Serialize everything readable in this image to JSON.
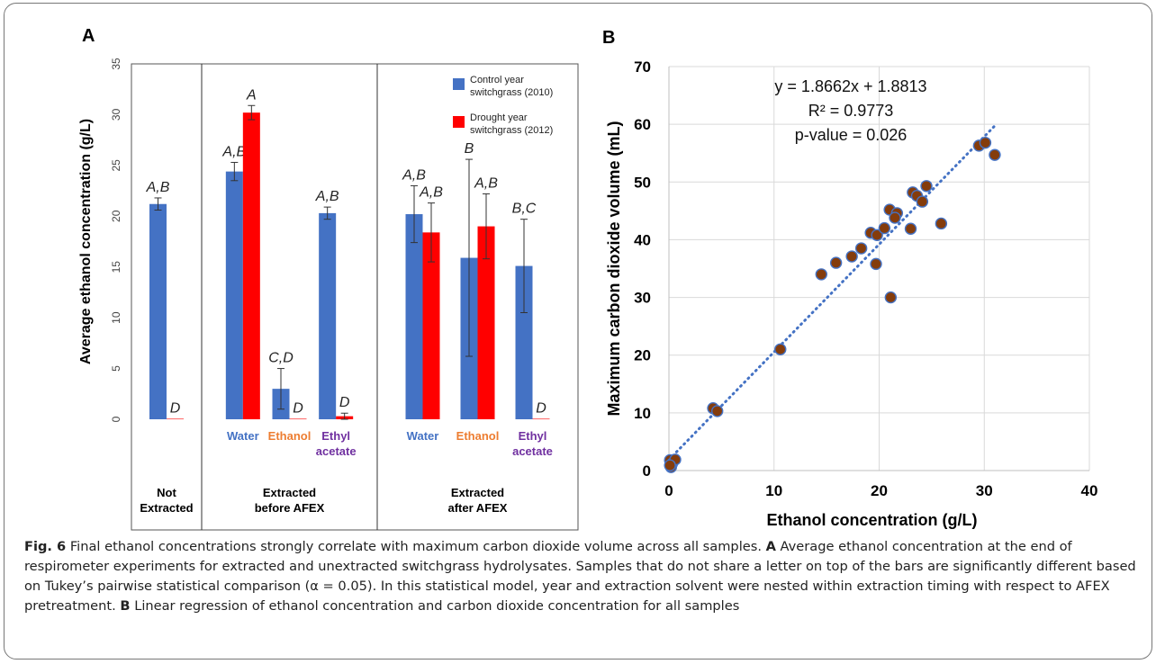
{
  "panel_labels": {
    "a": "A",
    "b": "B"
  },
  "caption": {
    "fig_label": "Fig. 6",
    "title": "Final ethanol concentrations strongly correlate with maximum carbon dioxide volume across all samples.",
    "label_a": "A",
    "text_a": "Average ethanol concentration at the end of respirometer experiments for extracted and unextracted switchgrass hydrolysates. Samples that do not share a letter on top of the bars are significantly different based on Tukey’s pairwise statistical comparison (α = 0.05). In this statistical model, year and extraction solvent were nested within extraction timing with respect to AFEX pretreatment.",
    "label_b": "B",
    "text_b": "Linear regression of ethanol concentration and carbon dioxide concentration for all samples"
  },
  "chart_data": [
    {
      "type": "bar",
      "ylabel": "Average ethanol concentration (g/L)",
      "ylim": [
        0,
        35
      ],
      "yticks": [
        "0",
        "5",
        "10",
        "15",
        "20",
        "25",
        "30",
        "35"
      ],
      "grid": false,
      "legend_position": "top-right",
      "colors": {
        "control": "#4472C4",
        "drought": "#FF0000",
        "water": "#4472C4",
        "ethanol": "#ED7D31",
        "ethyl": "#7030A0"
      },
      "series": [
        {
          "key": "control",
          "name_lines": [
            "Control year",
            "switchgrass (2010)"
          ]
        },
        {
          "key": "drought",
          "name_lines": [
            "Drought year",
            "switchgrass (2012)"
          ]
        }
      ],
      "groups": [
        {
          "label_lines": [
            "Not",
            "Extracted"
          ],
          "categories": [
            {
              "label_lines": [],
              "color_key": "",
              "bars": [
                {
                  "series": "control",
                  "value": 21.2,
                  "err": 0.6,
                  "letter": "A,B"
                },
                {
                  "series": "drought",
                  "value": 0.05,
                  "err": 0,
                  "letter": "D"
                }
              ]
            }
          ]
        },
        {
          "label_lines": [
            "Extracted",
            "before AFEX"
          ],
          "categories": [
            {
              "label_lines": [
                "Water"
              ],
              "color_key": "water",
              "bars": [
                {
                  "series": "control",
                  "value": 24.4,
                  "err": 0.9,
                  "letter": "A,B"
                },
                {
                  "series": "drought",
                  "value": 30.2,
                  "err": 0.7,
                  "letter": "A"
                }
              ]
            },
            {
              "label_lines": [
                "Ethanol"
              ],
              "color_key": "ethanol",
              "bars": [
                {
                  "series": "control",
                  "value": 3.0,
                  "err": 2.0,
                  "letter": "C,D"
                },
                {
                  "series": "drought",
                  "value": 0.05,
                  "err": 0,
                  "letter": "D"
                }
              ]
            },
            {
              "label_lines": [
                "Ethyl",
                "acetate"
              ],
              "color_key": "ethyl",
              "bars": [
                {
                  "series": "control",
                  "value": 20.3,
                  "err": 0.6,
                  "letter": "A,B"
                },
                {
                  "series": "drought",
                  "value": 0.3,
                  "err": 0.3,
                  "letter": "D"
                }
              ]
            }
          ]
        },
        {
          "label_lines": [
            "Extracted",
            "after AFEX"
          ],
          "categories": [
            {
              "label_lines": [
                "Water"
              ],
              "color_key": "water",
              "bars": [
                {
                  "series": "control",
                  "value": 20.2,
                  "err": 2.8,
                  "letter": "A,B"
                },
                {
                  "series": "drought",
                  "value": 18.4,
                  "err": 2.9,
                  "letter": "A,B"
                }
              ]
            },
            {
              "label_lines": [
                "Ethanol"
              ],
              "color_key": "ethanol",
              "bars": [
                {
                  "series": "control",
                  "value": 15.9,
                  "err": 9.7,
                  "letter": "B"
                },
                {
                  "series": "drought",
                  "value": 19.0,
                  "err": 3.2,
                  "letter": "A,B"
                }
              ]
            },
            {
              "label_lines": [
                "Ethyl",
                "acetate"
              ],
              "color_key": "ethyl",
              "bars": [
                {
                  "series": "control",
                  "value": 15.1,
                  "err": 4.6,
                  "letter": "B,C"
                },
                {
                  "series": "drought",
                  "value": 0.05,
                  "err": 0,
                  "letter": "D"
                }
              ]
            }
          ]
        }
      ]
    },
    {
      "type": "scatter",
      "xlabel": "Ethanol concentration (g/L)",
      "ylabel": "Maximum carbon dioxide volume (mL)",
      "xlim": [
        0,
        40
      ],
      "ylim": [
        0,
        70
      ],
      "xticks": [
        0,
        10,
        20,
        30,
        40
      ],
      "yticks": [
        0,
        10,
        20,
        30,
        40,
        50,
        60,
        70
      ],
      "grid": true,
      "point_color": "#843C0C",
      "point_edge": "#4472C4",
      "line_color": "#4472C4",
      "annotations": [
        "y = 1.8662x + 1.8813",
        "R² = 0.9773",
        "p-value = 0.026"
      ],
      "trendline": {
        "slope": 1.8662,
        "intercept": 1.8813,
        "x_range": [
          0,
          31.2
        ]
      },
      "points": [
        [
          0.1,
          1.8
        ],
        [
          0.3,
          1.2
        ],
        [
          0.2,
          0.6
        ],
        [
          0.6,
          1.9
        ],
        [
          0.1,
          0.9
        ],
        [
          4.2,
          10.8
        ],
        [
          4.6,
          10.3
        ],
        [
          10.6,
          21.0
        ],
        [
          14.5,
          34.0
        ],
        [
          15.9,
          36.0
        ],
        [
          17.4,
          37.1
        ],
        [
          18.3,
          38.5
        ],
        [
          19.2,
          41.2
        ],
        [
          19.7,
          35.8
        ],
        [
          19.8,
          40.8
        ],
        [
          20.5,
          42.0
        ],
        [
          21.0,
          45.2
        ],
        [
          21.7,
          44.6
        ],
        [
          21.5,
          43.8
        ],
        [
          21.1,
          30.0
        ],
        [
          23.0,
          41.9
        ],
        [
          23.2,
          48.2
        ],
        [
          23.6,
          47.6
        ],
        [
          24.1,
          46.6
        ],
        [
          24.5,
          49.3
        ],
        [
          25.9,
          42.8
        ],
        [
          29.5,
          56.3
        ],
        [
          30.1,
          56.8
        ],
        [
          31.0,
          54.7
        ]
      ]
    }
  ]
}
